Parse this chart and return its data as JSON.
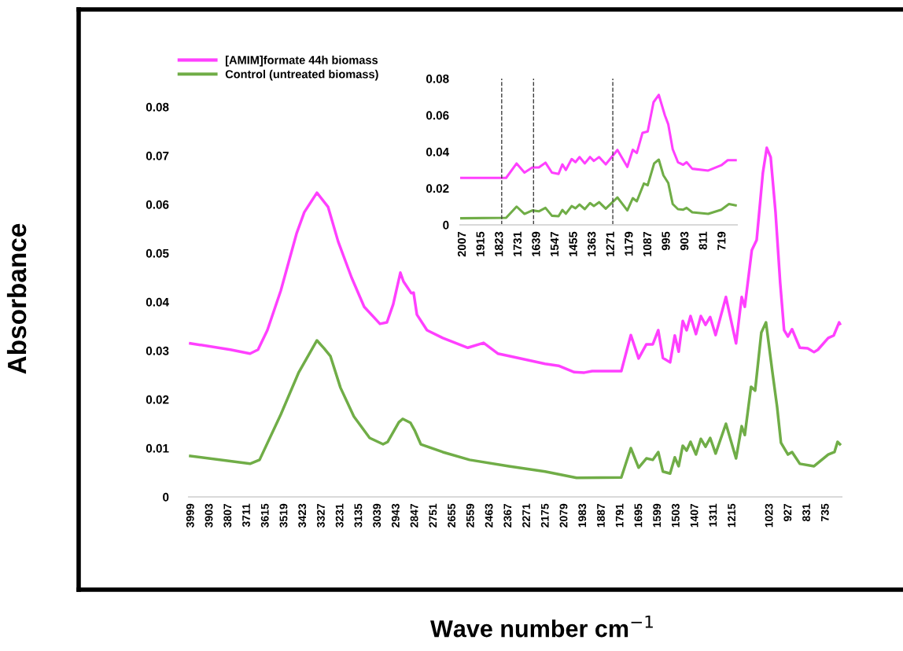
{
  "chart_data": [
    {
      "type": "line",
      "xlabel": "Wave number cm$^{−1}$",
      "ylabel": "Absorbance",
      "legend": "top left",
      "marker": "none",
      "line_style": "solid",
      "xlim": [
        4011,
        654
      ],
      "ylim": [
        0,
        0.08
      ],
      "xticks": [
        3999,
        3903,
        3807,
        3711,
        3615,
        3519,
        3423,
        3327,
        3231,
        3135,
        3039,
        2943,
        2847,
        2751,
        2655,
        2559,
        2463,
        2367,
        2271,
        2175,
        2079,
        1983,
        1887,
        1791,
        1695,
        1599,
        1503,
        1407,
        1311,
        1215,
        1023,
        927,
        831,
        735
      ],
      "yticks": [
        0,
        0.01,
        0.02,
        0.03,
        0.04,
        0.05,
        0.06,
        0.07,
        0.08
      ],
      "series": [
        {
          "name": "[AMIM]formate 44h biomass",
          "color": "#ff40ff",
          "x": [
            4003,
            3797,
            3696,
            3655,
            3607,
            3538,
            3457,
            3417,
            3352,
            3295,
            3243,
            3174,
            3109,
            3028,
            2992,
            2960,
            2923,
            2907,
            2867,
            2855,
            2838,
            2786,
            2705,
            2576,
            2495,
            2422,
            2365,
            2179,
            2110,
            2029,
            1977,
            1937,
            1787,
            1738,
            1698,
            1658,
            1625,
            1597,
            1573,
            1536,
            1512,
            1492,
            1471,
            1451,
            1431,
            1403,
            1378,
            1354,
            1330,
            1302,
            1249,
            1197,
            1168,
            1152,
            1116,
            1091,
            1059,
            1039,
            1019,
            994,
            970,
            950,
            930,
            909,
            869,
            829,
            796,
            776,
            723,
            695,
            667,
            663
          ],
          "values": [
            0.0315,
            0.0302,
            0.0294,
            0.0302,
            0.0342,
            0.0423,
            0.054,
            0.0584,
            0.0624,
            0.0595,
            0.0524,
            0.045,
            0.039,
            0.0355,
            0.0358,
            0.0395,
            0.046,
            0.0442,
            0.0418,
            0.0419,
            0.0374,
            0.0342,
            0.0326,
            0.0306,
            0.0316,
            0.0294,
            0.0289,
            0.0273,
            0.0269,
            0.0256,
            0.0255,
            0.0258,
            0.0258,
            0.0332,
            0.0284,
            0.0313,
            0.0313,
            0.0342,
            0.0285,
            0.0276,
            0.0331,
            0.0298,
            0.0361,
            0.0342,
            0.0371,
            0.0334,
            0.0371,
            0.0353,
            0.0369,
            0.0332,
            0.041,
            0.0315,
            0.041,
            0.039,
            0.0506,
            0.0527,
            0.0665,
            0.0716,
            0.0697,
            0.0584,
            0.0439,
            0.0342,
            0.0329,
            0.0344,
            0.0306,
            0.0305,
            0.0297,
            0.0302,
            0.0326,
            0.0331,
            0.0358,
            0.0355
          ]
        },
        {
          "name": "Control (untreated biomass)",
          "color": "#70ad47",
          "x": [
            4003,
            3696,
            3647,
            3538,
            3445,
            3352,
            3316,
            3283,
            3231,
            3162,
            3081,
            3012,
            2988,
            2931,
            2911,
            2871,
            2850,
            2818,
            2705,
            2567,
            2365,
            2179,
            2017,
            1787,
            1738,
            1698,
            1658,
            1625,
            1597,
            1573,
            1536,
            1512,
            1492,
            1471,
            1451,
            1431,
            1403,
            1378,
            1354,
            1330,
            1302,
            1249,
            1197,
            1168,
            1152,
            1120,
            1099,
            1067,
            1043,
            1010,
            986,
            966,
            930,
            909,
            869,
            796,
            723,
            691,
            675,
            663
          ],
          "values": [
            0.0084,
            0.0068,
            0.0076,
            0.0169,
            0.0256,
            0.0321,
            0.0305,
            0.0289,
            0.0224,
            0.0165,
            0.0121,
            0.0108,
            0.0113,
            0.0153,
            0.016,
            0.0152,
            0.0137,
            0.0108,
            0.0092,
            0.0076,
            0.0063,
            0.0052,
            0.0039,
            0.004,
            0.01,
            0.006,
            0.0079,
            0.0076,
            0.0092,
            0.0052,
            0.0048,
            0.0081,
            0.0063,
            0.0105,
            0.0095,
            0.0113,
            0.0087,
            0.0119,
            0.0103,
            0.0121,
            0.0089,
            0.015,
            0.0079,
            0.0145,
            0.0127,
            0.0226,
            0.0218,
            0.0337,
            0.0358,
            0.0256,
            0.0185,
            0.0111,
            0.0087,
            0.0092,
            0.0068,
            0.0063,
            0.0087,
            0.0092,
            0.0113,
            0.0108
          ]
        }
      ]
    },
    {
      "type": "line",
      "marker": "none",
      "line_style": "solid",
      "xlim": [
        2020,
        647
      ],
      "ylim": [
        0,
        0.08
      ],
      "xticks": [
        2007,
        1915,
        1823,
        1731,
        1639,
        1547,
        1455,
        1363,
        1271,
        1179,
        1087,
        995,
        903,
        811,
        719
      ],
      "yticks": [
        0,
        0.02,
        0.04,
        0.06,
        0.08
      ],
      "ref_lines": [
        {
          "axis": "x",
          "value": 1814,
          "color": "#404040",
          "line_style": "dashed"
        },
        {
          "axis": "x",
          "value": 1656,
          "color": "#404040",
          "line_style": "dashed"
        },
        {
          "axis": "x",
          "value": 1263,
          "color": "#404040",
          "line_style": "dashed"
        }
      ],
      "series": [
        {
          "color": "#ff40ff",
          "x": [
            2020,
            1792,
            1740,
            1701,
            1662,
            1630,
            1597,
            1565,
            1532,
            1513,
            1496,
            1467,
            1448,
            1428,
            1402,
            1376,
            1357,
            1331,
            1298,
            1240,
            1191,
            1164,
            1144,
            1116,
            1090,
            1061,
            1035,
            1005,
            988,
            966,
            940,
            914,
            897,
            869,
            790,
            725,
            693,
            654
          ],
          "values": [
            0.0257,
            0.0257,
            0.0336,
            0.0286,
            0.0314,
            0.0314,
            0.034,
            0.0286,
            0.0279,
            0.0331,
            0.03,
            0.036,
            0.0343,
            0.0371,
            0.0336,
            0.0371,
            0.035,
            0.0371,
            0.0331,
            0.041,
            0.0317,
            0.0411,
            0.0393,
            0.0503,
            0.0511,
            0.0671,
            0.0711,
            0.06,
            0.055,
            0.0414,
            0.0343,
            0.0329,
            0.0343,
            0.0307,
            0.0297,
            0.0326,
            0.0354,
            0.0354
          ]
        },
        {
          "color": "#70ad47",
          "x": [
            2020,
            1792,
            1740,
            1701,
            1662,
            1630,
            1597,
            1565,
            1532,
            1513,
            1496,
            1467,
            1448,
            1428,
            1402,
            1376,
            1357,
            1331,
            1298,
            1240,
            1191,
            1164,
            1144,
            1109,
            1090,
            1058,
            1035,
            1012,
            988,
            966,
            940,
            914,
            897,
            869,
            790,
            725,
            687,
            654
          ],
          "values": [
            0.0036,
            0.0039,
            0.01,
            0.006,
            0.0079,
            0.0074,
            0.0093,
            0.005,
            0.0047,
            0.0081,
            0.0061,
            0.0103,
            0.0091,
            0.0111,
            0.0086,
            0.0119,
            0.0103,
            0.0124,
            0.0089,
            0.015,
            0.0079,
            0.0146,
            0.0129,
            0.0226,
            0.0217,
            0.0336,
            0.0357,
            0.0271,
            0.0229,
            0.0114,
            0.0086,
            0.0083,
            0.0093,
            0.0069,
            0.006,
            0.0083,
            0.0114,
            0.0107
          ]
        }
      ]
    }
  ]
}
